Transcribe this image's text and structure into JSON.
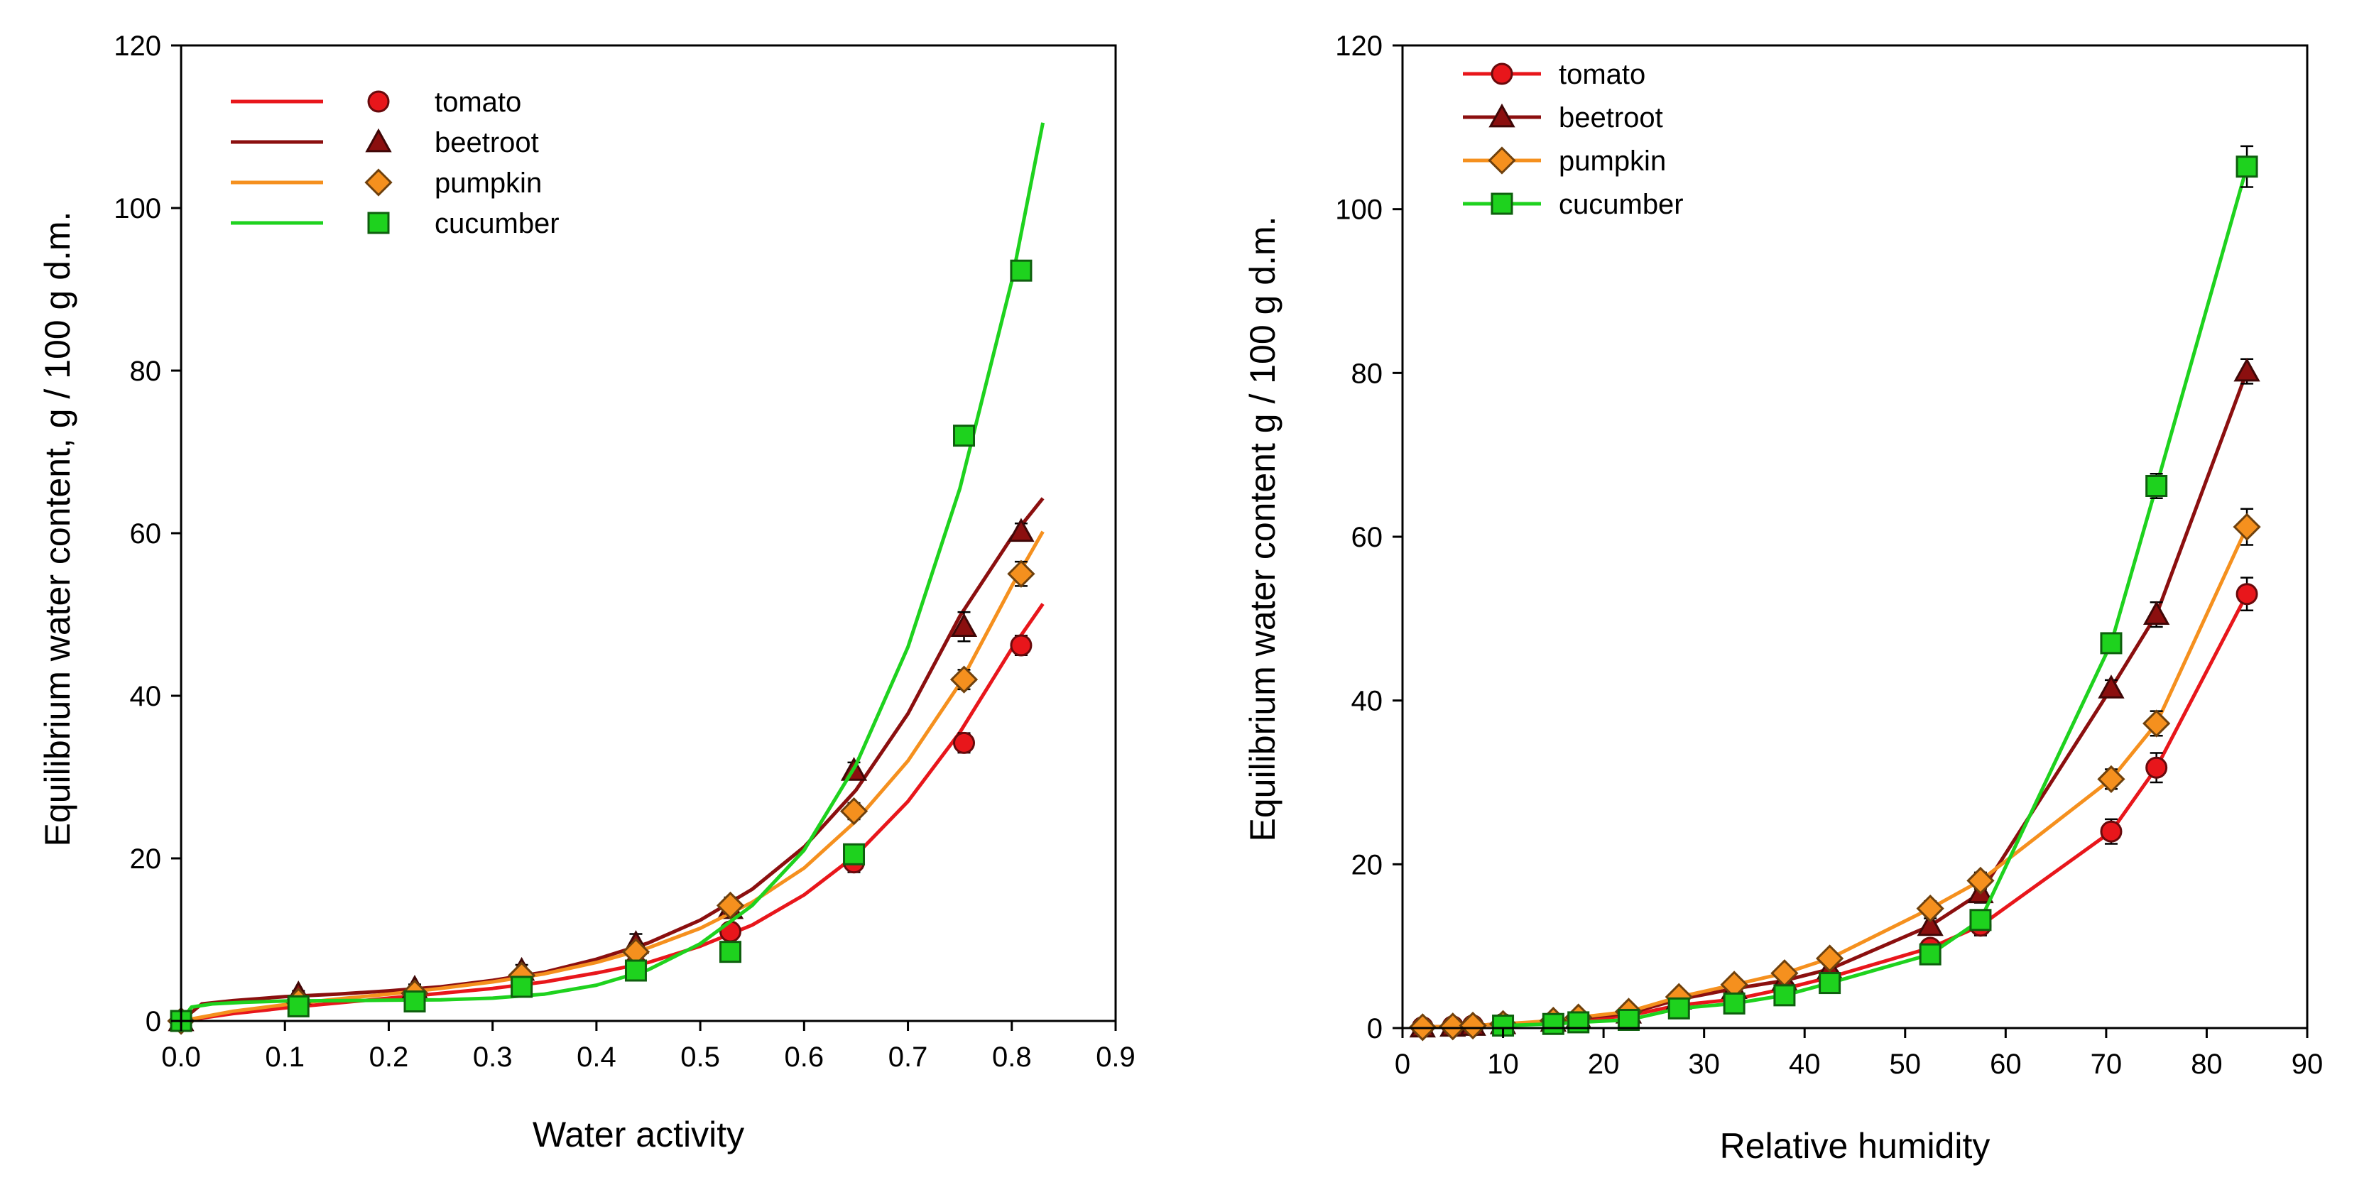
{
  "chart_data": [
    {
      "type": "scatter",
      "title": "",
      "xlabel": "Water activity",
      "ylabel": "Equilibrium water content, g / 100 g d.m.",
      "xlim": [
        0,
        0.9
      ],
      "ylim": [
        0,
        120
      ],
      "xticks": [
        0.0,
        0.1,
        0.2,
        0.3,
        0.4,
        0.5,
        0.6,
        0.7,
        0.8,
        0.9
      ],
      "xtick_labels": [
        "0.0",
        "0.1",
        "0.2",
        "0.3",
        "0.4",
        "0.5",
        "0.6",
        "0.7",
        "0.8",
        "0.9"
      ],
      "yticks": [
        0,
        20,
        40,
        60,
        80,
        100,
        120
      ],
      "ytick_labels": [
        "0",
        "20",
        "40",
        "60",
        "80",
        "100",
        "120"
      ],
      "legend_position": "top-left",
      "series": [
        {
          "name": "tomato",
          "color": "#e8161b",
          "marker": "circle",
          "points": [
            [
              0.0,
              0.0
            ],
            [
              0.113,
              2.0
            ],
            [
              0.225,
              2.8
            ],
            [
              0.328,
              4.8
            ],
            [
              0.438,
              6.8
            ],
            [
              0.529,
              11.0
            ],
            [
              0.648,
              19.5
            ],
            [
              0.754,
              34.2
            ],
            [
              0.809,
              46.2
            ]
          ],
          "errors": [
            0.3,
            0.4,
            0.5,
            0.7,
            0.8,
            1.0,
            1.2,
            1.2,
            1.2
          ],
          "fit_x": [
            0.0,
            0.05,
            0.1,
            0.15,
            0.2,
            0.25,
            0.3,
            0.35,
            0.4,
            0.45,
            0.5,
            0.55,
            0.6,
            0.65,
            0.7,
            0.75,
            0.8,
            0.83
          ],
          "fit_y": [
            0.0,
            0.9,
            1.6,
            2.2,
            2.8,
            3.4,
            4.0,
            4.8,
            5.9,
            7.2,
            9.2,
            11.8,
            15.5,
            20.4,
            27.0,
            35.5,
            45.8,
            51.3
          ]
        },
        {
          "name": "beetroot",
          "color": "#8b0f0f",
          "marker": "triangle",
          "points": [
            [
              0.0,
              0.0
            ],
            [
              0.113,
              3.3
            ],
            [
              0.225,
              4.0
            ],
            [
              0.328,
              6.2
            ],
            [
              0.438,
              9.5
            ],
            [
              0.529,
              13.8
            ],
            [
              0.648,
              30.8
            ],
            [
              0.754,
              48.5
            ],
            [
              0.809,
              60.2
            ]
          ],
          "errors": [
            0.3,
            0.4,
            0.5,
            0.7,
            1.2,
            1.0,
            1.0,
            1.8,
            1.0
          ],
          "fit_x": [
            0.0,
            0.02,
            0.05,
            0.1,
            0.15,
            0.2,
            0.25,
            0.3,
            0.35,
            0.4,
            0.45,
            0.5,
            0.55,
            0.6,
            0.65,
            0.7,
            0.75,
            0.8,
            0.83
          ],
          "fit_y": [
            0.0,
            2.1,
            2.5,
            3.0,
            3.3,
            3.7,
            4.2,
            5.0,
            6.0,
            7.6,
            9.6,
            12.4,
            16.2,
            21.4,
            28.4,
            37.8,
            49.8,
            59.5,
            64.3
          ]
        },
        {
          "name": "pumpkin",
          "color": "#f5901e",
          "marker": "diamond",
          "points": [
            [
              0.0,
              0.0
            ],
            [
              0.113,
              2.4
            ],
            [
              0.225,
              3.4
            ],
            [
              0.328,
              5.6
            ],
            [
              0.438,
              8.5
            ],
            [
              0.529,
              14.2
            ],
            [
              0.648,
              25.8
            ],
            [
              0.754,
              42.0
            ],
            [
              0.809,
              55.0
            ]
          ],
          "errors": [
            0.3,
            0.4,
            0.5,
            0.7,
            1.0,
            1.0,
            1.0,
            1.2,
            1.5
          ],
          "fit_x": [
            0.0,
            0.05,
            0.1,
            0.15,
            0.2,
            0.25,
            0.3,
            0.35,
            0.4,
            0.45,
            0.5,
            0.55,
            0.6,
            0.65,
            0.7,
            0.75,
            0.8,
            0.83
          ],
          "fit_y": [
            0.0,
            1.2,
            2.0,
            2.7,
            3.3,
            4.0,
            4.8,
            5.8,
            7.2,
            9.0,
            11.4,
            14.6,
            18.8,
            24.6,
            32.0,
            41.5,
            53.5,
            60.2
          ]
        },
        {
          "name": "cucumber",
          "color": "#1ed21e",
          "marker": "square",
          "points": [
            [
              0.0,
              0.0
            ],
            [
              0.113,
              1.8
            ],
            [
              0.225,
              2.4
            ],
            [
              0.328,
              4.2
            ],
            [
              0.438,
              6.2
            ],
            [
              0.529,
              8.5
            ],
            [
              0.648,
              20.5
            ],
            [
              0.754,
              72.0
            ],
            [
              0.809,
              92.3
            ]
          ],
          "errors": [
            0.3,
            0.4,
            0.5,
            0.6,
            0.8,
            0.8,
            1.2,
            1.0,
            1.0
          ],
          "fit_x": [
            0.0,
            0.01,
            0.03,
            0.06,
            0.1,
            0.15,
            0.2,
            0.25,
            0.3,
            0.35,
            0.4,
            0.45,
            0.5,
            0.55,
            0.6,
            0.65,
            0.7,
            0.75,
            0.8,
            0.83
          ],
          "fit_y": [
            0.0,
            1.7,
            2.1,
            2.3,
            2.45,
            2.5,
            2.55,
            2.6,
            2.8,
            3.3,
            4.4,
            6.3,
            9.5,
            14.2,
            21.0,
            31.5,
            46.0,
            65.5,
            91.0,
            110.5
          ]
        }
      ]
    },
    {
      "type": "line",
      "title": "",
      "xlabel": "Relative humidity",
      "ylabel": "Equilibrium water content g / 100 g d.m.",
      "xlim": [
        0,
        90
      ],
      "ylim": [
        0,
        120
      ],
      "xticks": [
        0,
        10,
        20,
        30,
        40,
        50,
        60,
        70,
        80,
        90
      ],
      "xtick_labels": [
        "0",
        "10",
        "20",
        "30",
        "40",
        "50",
        "60",
        "70",
        "80",
        "90"
      ],
      "yticks": [
        0,
        20,
        40,
        60,
        80,
        100,
        120
      ],
      "ytick_labels": [
        "0",
        "20",
        "40",
        "60",
        "80",
        "100",
        "120"
      ],
      "legend_position": "top-left",
      "series": [
        {
          "name": "tomato",
          "color": "#e8161b",
          "marker": "circle",
          "x": [
            2,
            5,
            7,
            10,
            15,
            17.5,
            22.5,
            27.5,
            33,
            38,
            42.5,
            52.5,
            57.5,
            70.5,
            75,
            84
          ],
          "y": [
            0.1,
            0.2,
            0.3,
            0.5,
            0.7,
            1.0,
            1.5,
            2.8,
            3.5,
            4.8,
            6.2,
            9.8,
            12.5,
            24.0,
            31.8,
            53.0
          ],
          "errors": [
            0.2,
            0.2,
            0.2,
            0.3,
            0.3,
            0.3,
            0.4,
            0.5,
            0.5,
            0.5,
            0.6,
            0.8,
            1.2,
            1.5,
            1.8,
            2.0
          ]
        },
        {
          "name": "beetroot",
          "color": "#8b0f0f",
          "marker": "triangle",
          "x": [
            2,
            5,
            7,
            10,
            15,
            17.5,
            22.5,
            27.5,
            33,
            38,
            42.5,
            52.5,
            57.5,
            70.5,
            75,
            84
          ],
          "y": [
            0.1,
            0.2,
            0.3,
            0.5,
            0.8,
            1.2,
            1.8,
            3.5,
            4.8,
            5.8,
            7.2,
            12.5,
            16.5,
            41.5,
            50.5,
            80.2
          ],
          "errors": [
            0.2,
            0.2,
            0.2,
            0.3,
            0.3,
            0.3,
            0.4,
            0.5,
            0.5,
            0.6,
            0.6,
            0.9,
            1.2,
            1.0,
            1.5,
            1.5
          ]
        },
        {
          "name": "pumpkin",
          "color": "#f5901e",
          "marker": "diamond",
          "x": [
            2,
            5,
            7,
            10,
            15,
            17.5,
            22.5,
            27.5,
            33,
            38,
            42.5,
            52.5,
            57.5,
            70.5,
            75,
            84
          ],
          "y": [
            0.1,
            0.2,
            0.3,
            0.5,
            0.9,
            1.3,
            2.0,
            3.8,
            5.3,
            6.7,
            8.5,
            14.6,
            18.0,
            30.4,
            37.2,
            61.2
          ],
          "errors": [
            0.2,
            0.2,
            0.2,
            0.3,
            0.3,
            0.3,
            0.4,
            0.5,
            0.6,
            0.6,
            0.7,
            0.9,
            1.0,
            1.2,
            1.5,
            2.2
          ]
        },
        {
          "name": "cucumber",
          "color": "#1ed21e",
          "marker": "square",
          "x": [
            10,
            15,
            17.5,
            22.5,
            27.5,
            33,
            38,
            42.5,
            52.5,
            57.5,
            70.5,
            75,
            84
          ],
          "y": [
            0.3,
            0.5,
            0.7,
            1.0,
            2.4,
            3.0,
            4.0,
            5.5,
            9.0,
            13.2,
            47.0,
            66.2,
            105.2
          ],
          "errors": [
            0.3,
            0.3,
            0.3,
            0.4,
            0.5,
            0.5,
            0.5,
            0.6,
            0.8,
            1.2,
            1.2,
            1.5,
            2.5
          ]
        }
      ]
    }
  ]
}
